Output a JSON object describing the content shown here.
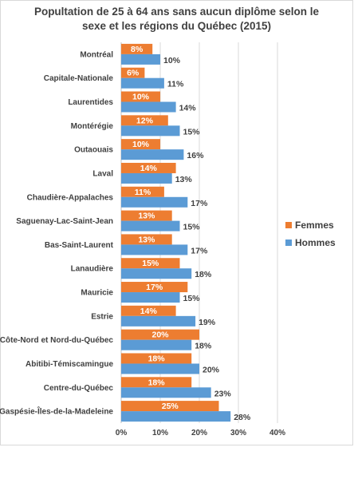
{
  "chart_data": {
    "type": "bar",
    "orientation": "horizontal",
    "title_line1": "Popultation de 25 à 64 ans sans aucun diplôme selon le",
    "title_line2": "sexe et les régions du Québec (2015)",
    "categories": [
      "Montréal",
      "Capitale-Nationale",
      "Laurentides",
      "Montérégie",
      "Outaouais",
      "Laval",
      "Chaudière-Appalaches",
      "Saguenay-Lac-Saint-Jean",
      "Bas-Saint-Laurent",
      "Lanaudière",
      "Mauricie",
      "Estrie",
      "Côte-Nord et Nord-du-Québec",
      "Abitibi-Témiscamingue",
      "Centre-du-Québec",
      "Gaspésie-Îles-de-la-Madeleine"
    ],
    "series": [
      {
        "name": "Femmes",
        "color": "#ed7d31",
        "values": [
          8,
          6,
          10,
          12,
          10,
          14,
          11,
          13,
          13,
          15,
          17,
          14,
          20,
          18,
          18,
          25
        ]
      },
      {
        "name": "Hommes",
        "color": "#5b9bd5",
        "values": [
          10,
          11,
          14,
          15,
          16,
          13,
          17,
          15,
          17,
          18,
          15,
          19,
          18,
          20,
          23,
          28
        ]
      }
    ],
    "value_suffix": "%",
    "xlim": [
      0,
      40
    ],
    "xticks": [
      "0%",
      "10%",
      "20%",
      "30%",
      "40%"
    ],
    "grid": true,
    "legend_position": "right"
  }
}
